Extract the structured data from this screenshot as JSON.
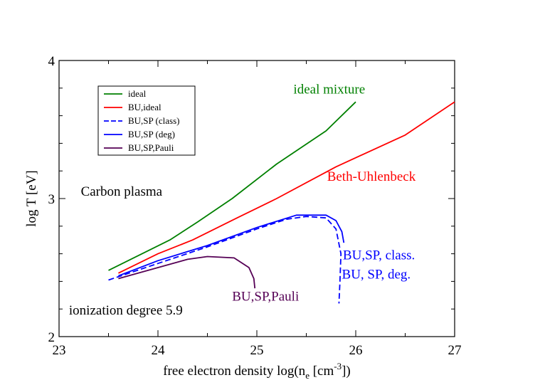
{
  "chart_data": {
    "type": "line",
    "title": "",
    "xlabel_prefix": "free electron density log(n",
    "xlabel_sub": "e",
    "xlabel_mid": " [cm",
    "xlabel_sup": "-3",
    "xlabel_suffix": "])",
    "ylabel": "log T [eV]",
    "xlim": [
      23,
      27
    ],
    "ylim": [
      2,
      4
    ],
    "x_ticks": [
      23,
      24,
      25,
      26,
      27
    ],
    "y_ticks": [
      2,
      3,
      4
    ],
    "x_tick_labels": [
      "23",
      "24",
      "25",
      "26",
      "27"
    ],
    "y_tick_labels": [
      "2",
      "3",
      "4"
    ],
    "legend_position": "top-left",
    "series": [
      {
        "name": "ideal",
        "color": "#008000",
        "dash": "solid",
        "x": [
          23.5,
          24.12,
          24.4,
          24.75,
          25.2,
          25.7,
          26.0
        ],
        "y": [
          2.48,
          2.7,
          2.83,
          3.0,
          3.25,
          3.49,
          3.7
        ]
      },
      {
        "name": "BU,ideal",
        "color": "#ff0000",
        "dash": "solid",
        "x": [
          23.6,
          24.0,
          24.35,
          24.8,
          25.2,
          25.8,
          26.5,
          27.0
        ],
        "y": [
          2.46,
          2.6,
          2.7,
          2.86,
          3.0,
          3.23,
          3.46,
          3.7
        ]
      },
      {
        "name": "BU,SP (class)",
        "color": "#0000ff",
        "dash": "dashed",
        "x": [
          23.5,
          24.0,
          24.5,
          25.0,
          25.3,
          25.5,
          25.7,
          25.8,
          25.85,
          25.84,
          25.83
        ],
        "y": [
          2.41,
          2.53,
          2.65,
          2.78,
          2.85,
          2.87,
          2.86,
          2.78,
          2.6,
          2.4,
          2.24
        ]
      },
      {
        "name": "BU,SP (deg)",
        "color": "#0000ff",
        "dash": "solid",
        "x": [
          23.6,
          24.0,
          24.5,
          25.0,
          25.4,
          25.7,
          25.8,
          25.86,
          25.88
        ],
        "y": [
          2.44,
          2.55,
          2.66,
          2.79,
          2.88,
          2.88,
          2.84,
          2.76,
          2.68
        ]
      },
      {
        "name": "BU,SP,Pauli",
        "color": "#550055",
        "dash": "solid",
        "x": [
          23.6,
          24.0,
          24.3,
          24.5,
          24.77,
          24.92,
          24.97,
          24.98
        ],
        "y": [
          2.42,
          2.5,
          2.56,
          2.58,
          2.57,
          2.5,
          2.42,
          2.35
        ]
      }
    ],
    "annotations": [
      {
        "text": "ideal mixture",
        "color": "#008000",
        "x": 25.37,
        "y": 3.76
      },
      {
        "text": "Beth-Uhlenbeck",
        "color": "#ff0000",
        "x": 25.71,
        "y": 3.13
      },
      {
        "text": "Carbon plasma",
        "color": "#000000",
        "x": 23.22,
        "y": 3.02
      },
      {
        "text": "BU,SP, class.",
        "color": "#0000ff",
        "x": 25.87,
        "y": 2.56
      },
      {
        "text": "BU, SP, deg.",
        "color": "#0000ff",
        "x": 25.86,
        "y": 2.42
      },
      {
        "text": "BU,SP,Pauli",
        "color": "#550055",
        "x": 24.75,
        "y": 2.26
      },
      {
        "text": "ionization degree 5.9",
        "color": "#000000",
        "x": 23.1,
        "y": 2.16
      }
    ]
  }
}
